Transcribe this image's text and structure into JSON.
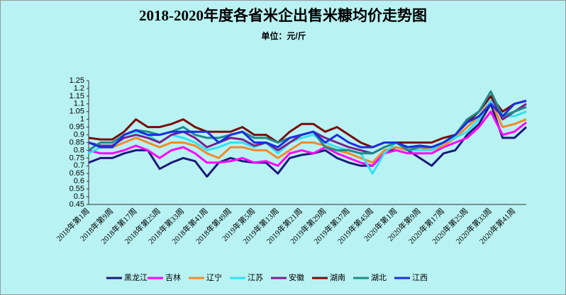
{
  "chart_data": {
    "type": "line",
    "title": "2018-2020年度各省米企出售米糠均价走势图",
    "subtitle": "单位：元/斤",
    "categories": [
      "2018年第1周",
      null,
      "2018年第9周",
      null,
      "2018年第17周",
      null,
      "2018年第25周",
      null,
      "2018年第33周",
      null,
      "2018年第41周",
      null,
      "2018年第49周",
      null,
      "2019年第5周",
      null,
      "2019年第13周",
      null,
      "2019年第21周",
      null,
      "2019年第29周",
      null,
      "2019年第37周",
      null,
      "2019年第45周",
      null,
      "2020年第1周",
      null,
      "2020年第9周",
      null,
      "2020年第17周",
      null,
      "2020年第25周",
      null,
      "2020年第33周",
      null,
      "2020年第41周",
      null
    ],
    "series": [
      {
        "name": "黑龙江",
        "color": "#1a1a7a",
        "values": [
          0.72,
          0.75,
          0.75,
          0.78,
          0.8,
          0.8,
          0.68,
          0.72,
          0.75,
          0.73,
          0.63,
          0.72,
          0.75,
          0.73,
          0.72,
          0.72,
          0.65,
          0.75,
          0.77,
          0.78,
          0.8,
          0.75,
          0.72,
          0.7,
          0.7,
          0.78,
          0.82,
          0.8,
          0.75,
          0.7,
          0.78,
          0.8,
          0.9,
          0.97,
          1.1,
          0.88,
          0.88,
          0.95
        ]
      },
      {
        "name": "吉林",
        "color": "#ff00ff",
        "values": [
          0.8,
          0.78,
          0.78,
          0.8,
          0.83,
          0.8,
          0.75,
          0.8,
          0.82,
          0.78,
          0.72,
          0.72,
          0.73,
          0.75,
          0.72,
          0.73,
          0.7,
          0.78,
          0.8,
          0.78,
          0.82,
          0.78,
          0.75,
          0.72,
          0.7,
          0.78,
          0.8,
          0.78,
          0.78,
          0.78,
          0.82,
          0.85,
          0.88,
          0.95,
          1.05,
          0.9,
          0.92,
          0.98
        ]
      },
      {
        "name": "辽宁",
        "color": "#f08a2c",
        "values": [
          0.85,
          0.82,
          0.82,
          0.85,
          0.88,
          0.85,
          0.82,
          0.85,
          0.85,
          0.83,
          0.78,
          0.75,
          0.82,
          0.82,
          0.8,
          0.8,
          0.75,
          0.8,
          0.85,
          0.85,
          0.83,
          0.8,
          0.78,
          0.75,
          0.72,
          0.8,
          0.82,
          0.8,
          0.82,
          0.8,
          0.83,
          0.88,
          0.95,
          1.02,
          1.12,
          0.95,
          0.97,
          1.0
        ]
      },
      {
        "name": "江苏",
        "color": "#33e0f0",
        "values": [
          0.78,
          0.82,
          0.82,
          0.9,
          0.92,
          0.9,
          0.85,
          0.9,
          0.88,
          0.85,
          0.8,
          0.82,
          0.85,
          0.85,
          0.82,
          0.85,
          0.78,
          0.85,
          0.88,
          0.9,
          0.85,
          0.82,
          0.8,
          0.78,
          0.65,
          0.78,
          0.85,
          0.8,
          0.8,
          0.8,
          0.85,
          0.88,
          0.92,
          1.0,
          1.12,
          1.02,
          1.02,
          1.05
        ]
      },
      {
        "name": "安徽",
        "color": "#7b1f8a",
        "values": [
          0.85,
          0.83,
          0.83,
          0.88,
          0.9,
          0.88,
          0.85,
          0.9,
          0.92,
          0.88,
          0.82,
          0.85,
          0.88,
          0.87,
          0.83,
          0.85,
          0.8,
          0.85,
          0.9,
          0.92,
          0.88,
          0.85,
          0.82,
          0.8,
          0.78,
          0.82,
          0.85,
          0.82,
          0.83,
          0.82,
          0.85,
          0.9,
          0.98,
          1.05,
          1.15,
          1.0,
          1.05,
          1.1
        ]
      },
      {
        "name": "湖南",
        "color": "#7a0a0a",
        "values": [
          0.88,
          0.87,
          0.87,
          0.92,
          1.0,
          0.95,
          0.95,
          0.97,
          1.0,
          0.95,
          0.92,
          0.92,
          0.92,
          0.95,
          0.9,
          0.9,
          0.85,
          0.92,
          0.97,
          0.97,
          0.92,
          0.95,
          0.9,
          0.85,
          0.82,
          0.85,
          0.85,
          0.85,
          0.85,
          0.85,
          0.88,
          0.9,
          0.98,
          1.05,
          1.15,
          1.05,
          1.1,
          1.12
        ]
      },
      {
        "name": "湖北",
        "color": "#1f8a8a",
        "values": [
          0.8,
          0.85,
          0.85,
          0.9,
          0.93,
          0.92,
          0.9,
          0.92,
          0.95,
          0.9,
          0.88,
          0.88,
          0.9,
          0.92,
          0.88,
          0.88,
          0.85,
          0.88,
          0.9,
          0.92,
          0.82,
          0.8,
          0.8,
          0.78,
          0.78,
          0.82,
          0.85,
          0.8,
          0.82,
          0.82,
          0.85,
          0.9,
          1.0,
          1.05,
          1.18,
          1.02,
          1.05,
          1.08
        ]
      },
      {
        "name": "江西",
        "color": "#1a2ee0",
        "values": [
          0.85,
          0.82,
          0.82,
          0.9,
          0.93,
          0.9,
          0.9,
          0.92,
          0.92,
          0.92,
          0.92,
          0.85,
          0.9,
          0.92,
          0.85,
          0.85,
          0.82,
          0.88,
          0.9,
          0.92,
          0.85,
          0.9,
          0.85,
          0.82,
          0.82,
          0.85,
          0.85,
          0.82,
          0.83,
          0.82,
          0.85,
          0.9,
          0.98,
          1.02,
          1.1,
          1.02,
          1.1,
          1.12
        ]
      }
    ],
    "ylim": [
      0.45,
      1.25
    ],
    "yticks": [
      0.45,
      0.5,
      0.55,
      0.6,
      0.65,
      0.7,
      0.75,
      0.8,
      0.85,
      0.9,
      0.95,
      1,
      1.05,
      1.1,
      1.15,
      1.2,
      1.25
    ],
    "grid": false,
    "legend": "bottom"
  }
}
